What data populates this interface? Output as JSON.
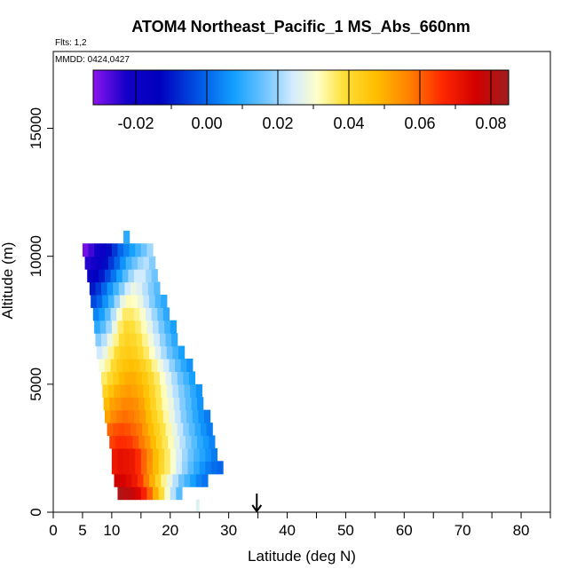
{
  "chart_data": {
    "type": "heatmap",
    "title": "ATOM4 Northeast_Pacific_1 MS_Abs_660nm",
    "flights_label": "Flts: 1,2",
    "dates_label": "MMDD: 0424,0427",
    "xlabel": "Latitude (deg N)",
    "ylabel": "Altitude (m)",
    "xlim": [
      0,
      85
    ],
    "ylim": [
      0,
      18000
    ],
    "x_ticks": [
      0,
      5,
      10,
      20,
      30,
      40,
      50,
      60,
      70,
      80
    ],
    "x_minor_ticks": [
      15,
      25,
      35,
      45,
      55,
      65,
      75,
      85
    ],
    "y_ticks": [
      0,
      5000,
      10000,
      15000
    ],
    "colorbar": {
      "range": [
        -0.032,
        0.085
      ],
      "ticks": [
        "-0.02",
        "0.00",
        "0.02",
        "0.04",
        "0.06",
        "0.08"
      ],
      "tick_values": [
        -0.02,
        0.0,
        0.02,
        0.04,
        0.06,
        0.08
      ]
    },
    "marker_latitude": 34.8,
    "bin_height_m": 500,
    "rows": [
      {
        "alt": 750,
        "lat_start": 11.0,
        "values": [
          0.082,
          0.08,
          0.078,
          0.074,
          0.068,
          0.06,
          0.05,
          0.04,
          0.03,
          0.022,
          0.014
        ]
      },
      {
        "alt": 1250,
        "lat_start": 10.4,
        "values": [
          0.076,
          0.075,
          0.073,
          0.07,
          0.065,
          0.058,
          0.05,
          0.042,
          0.034,
          0.028,
          0.022,
          0.016,
          0.012,
          0.008,
          0.004,
          0.002
        ]
      },
      {
        "alt": 1750,
        "lat_start": 10.0,
        "values": [
          0.07,
          0.072,
          0.071,
          0.07,
          0.066,
          0.06,
          0.054,
          0.048,
          0.041,
          0.036,
          0.03,
          0.024,
          0.019,
          0.014,
          0.01,
          0.006,
          0.003,
          0.001,
          0.0
        ]
      },
      {
        "alt": 2250,
        "lat_start": 10.0,
        "values": [
          0.07,
          0.072,
          0.071,
          0.07,
          0.066,
          0.06,
          0.055,
          0.048,
          0.042,
          0.036,
          0.03,
          0.025,
          0.02,
          0.016,
          0.012,
          0.009,
          0.006,
          0.003
        ]
      },
      {
        "alt": 2750,
        "lat_start": 9.6,
        "values": [
          0.064,
          0.066,
          0.066,
          0.065,
          0.062,
          0.058,
          0.054,
          0.048,
          0.042,
          0.037,
          0.032,
          0.027,
          0.022,
          0.018,
          0.014,
          0.01,
          0.007,
          0.004
        ]
      },
      {
        "alt": 3250,
        "lat_start": 9.2,
        "values": [
          0.06,
          0.062,
          0.063,
          0.062,
          0.06,
          0.058,
          0.053,
          0.048,
          0.043,
          0.038,
          0.033,
          0.028,
          0.023,
          0.018,
          0.014,
          0.01,
          0.006,
          0.003
        ]
      },
      {
        "alt": 3750,
        "lat_start": 8.8,
        "values": [
          0.052,
          0.056,
          0.058,
          0.059,
          0.058,
          0.056,
          0.053,
          0.048,
          0.043,
          0.038,
          0.033,
          0.028,
          0.023,
          0.018,
          0.014,
          0.01,
          0.006,
          0.003
        ]
      },
      {
        "alt": 4250,
        "lat_start": 8.6,
        "values": [
          0.048,
          0.052,
          0.054,
          0.056,
          0.056,
          0.055,
          0.052,
          0.047,
          0.042,
          0.037,
          0.032,
          0.028,
          0.023,
          0.018,
          0.014,
          0.01,
          0.006
        ]
      },
      {
        "alt": 4750,
        "lat_start": 8.4,
        "values": [
          0.042,
          0.046,
          0.05,
          0.052,
          0.053,
          0.052,
          0.05,
          0.046,
          0.042,
          0.037,
          0.032,
          0.027,
          0.022,
          0.018,
          0.014,
          0.01,
          0.006
        ]
      },
      {
        "alt": 5250,
        "lat_start": 8.2,
        "values": [
          0.036,
          0.04,
          0.044,
          0.048,
          0.05,
          0.05,
          0.048,
          0.045,
          0.041,
          0.036,
          0.031,
          0.026,
          0.021,
          0.016,
          0.012,
          0.008
        ]
      },
      {
        "alt": 5750,
        "lat_start": 7.8,
        "values": [
          0.03,
          0.034,
          0.04,
          0.044,
          0.046,
          0.047,
          0.046,
          0.043,
          0.039,
          0.034,
          0.029,
          0.024,
          0.019,
          0.014,
          0.01,
          0.006
        ]
      },
      {
        "alt": 6250,
        "lat_start": 7.4,
        "values": [
          0.024,
          0.028,
          0.034,
          0.04,
          0.043,
          0.044,
          0.043,
          0.04,
          0.036,
          0.031,
          0.026,
          0.021,
          0.016,
          0.012,
          0.008
        ]
      },
      {
        "alt": 6750,
        "lat_start": 7.2,
        "values": [
          0.018,
          0.022,
          0.028,
          0.034,
          0.04,
          0.042,
          0.041,
          0.038,
          0.034,
          0.029,
          0.024,
          0.019,
          0.014,
          0.01
        ]
      },
      {
        "alt": 7250,
        "lat_start": 7.0,
        "values": [
          0.01,
          0.014,
          0.02,
          0.028,
          0.036,
          0.04,
          0.039,
          0.036,
          0.032,
          0.027,
          0.022,
          0.017,
          0.012,
          0.008
        ]
      },
      {
        "alt": 7750,
        "lat_start": 6.8,
        "values": [
          0.004,
          0.008,
          0.014,
          0.022,
          0.03,
          0.036,
          0.036,
          0.034,
          0.03,
          0.025,
          0.02,
          0.015,
          0.01
        ]
      },
      {
        "alt": 8250,
        "lat_start": 6.4,
        "values": [
          -0.004,
          0.0,
          0.006,
          0.012,
          0.02,
          0.028,
          0.032,
          0.031,
          0.028,
          0.023,
          0.018,
          0.013,
          0.01
        ]
      },
      {
        "alt": 8750,
        "lat_start": 6.2,
        "values": [
          -0.01,
          -0.006,
          0.0,
          0.006,
          0.012,
          0.018,
          0.024,
          0.028,
          0.026,
          0.022,
          0.018,
          0.014
        ]
      },
      {
        "alt": 9250,
        "lat_start": 5.8,
        "values": [
          -0.018,
          -0.014,
          -0.01,
          -0.004,
          0.002,
          0.008,
          0.014,
          0.02,
          0.024,
          0.024,
          0.02,
          0.016
        ]
      },
      {
        "alt": 9750,
        "lat_start": 5.4,
        "values": [
          -0.024,
          -0.022,
          -0.018,
          -0.012,
          -0.006,
          0.0,
          0.006,
          0.012,
          0.016,
          0.02,
          0.022,
          0.018
        ]
      },
      {
        "alt": 10250,
        "lat_start": 5.0,
        "values": [
          -0.03,
          -0.026,
          -0.022,
          -0.018,
          -0.012,
          -0.006,
          0.0,
          0.004,
          0.008,
          0.012,
          0.016,
          0.02
        ]
      },
      {
        "alt": 10750,
        "lat_start": 12.0,
        "values": [
          0.01
        ]
      }
    ],
    "extra_cells": [
      {
        "lat": 24.4,
        "alt": 250,
        "value": 0.026
      }
    ]
  }
}
